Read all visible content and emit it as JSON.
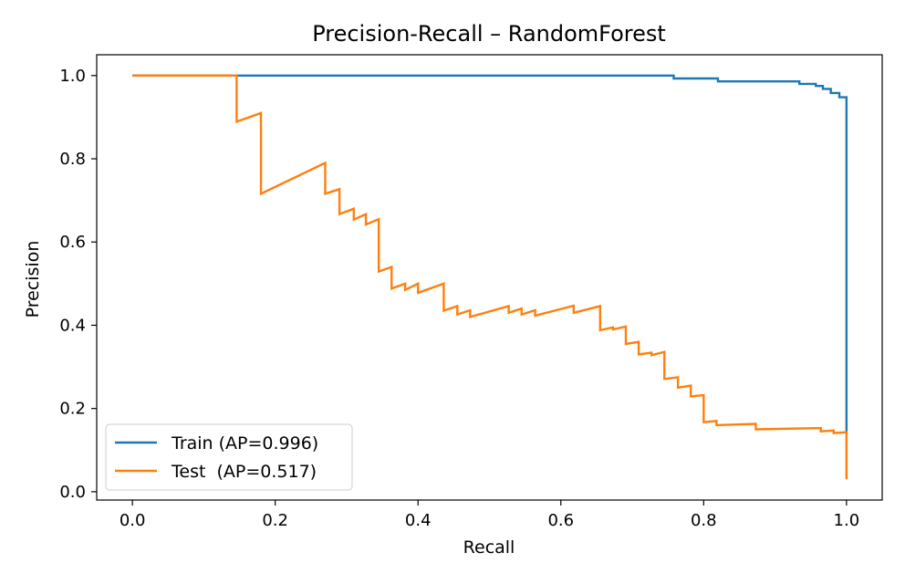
{
  "chart_data": {
    "type": "line",
    "title": "Precision-Recall – RandomForest",
    "xlabel": "Recall",
    "ylabel": "Precision",
    "xlim": [
      -0.05,
      1.05
    ],
    "ylim": [
      -0.02,
      1.05
    ],
    "xticks": [
      0.0,
      0.2,
      0.4,
      0.6,
      0.8,
      1.0
    ],
    "xtick_labels": [
      "0.0",
      "0.2",
      "0.4",
      "0.6",
      "0.8",
      "1.0"
    ],
    "yticks": [
      0.0,
      0.2,
      0.4,
      0.6,
      0.8,
      1.0
    ],
    "ytick_labels": [
      "0.0",
      "0.2",
      "0.4",
      "0.6",
      "0.8",
      "1.0"
    ],
    "grid": false,
    "legend_position": "lower-left",
    "series": [
      {
        "name": "Train (AP=0.996)",
        "color": "#1f77b4",
        "step": true,
        "points": [
          [
            0.0,
            1.0
          ],
          [
            0.758,
            1.0
          ],
          [
            0.758,
            0.993
          ],
          [
            0.82,
            0.993
          ],
          [
            0.82,
            0.986
          ],
          [
            0.934,
            0.986
          ],
          [
            0.934,
            0.98
          ],
          [
            0.957,
            0.98
          ],
          [
            0.957,
            0.975
          ],
          [
            0.967,
            0.975
          ],
          [
            0.967,
            0.968
          ],
          [
            0.978,
            0.968
          ],
          [
            0.978,
            0.958
          ],
          [
            0.99,
            0.958
          ],
          [
            0.99,
            0.948
          ],
          [
            1.0,
            0.948
          ],
          [
            1.0,
            0.14
          ]
        ]
      },
      {
        "name": "Test  (AP=0.517)",
        "color": "#ff7f0e",
        "step": true,
        "points": [
          [
            0.0,
            1.0
          ],
          [
            0.146,
            1.0
          ],
          [
            0.146,
            0.889
          ],
          [
            0.18,
            0.91
          ],
          [
            0.18,
            0.716
          ],
          [
            0.27,
            0.79
          ],
          [
            0.27,
            0.716
          ],
          [
            0.29,
            0.727
          ],
          [
            0.29,
            0.667
          ],
          [
            0.31,
            0.68
          ],
          [
            0.31,
            0.654
          ],
          [
            0.327,
            0.667
          ],
          [
            0.327,
            0.642
          ],
          [
            0.345,
            0.655
          ],
          [
            0.345,
            0.529
          ],
          [
            0.363,
            0.54
          ],
          [
            0.363,
            0.488
          ],
          [
            0.382,
            0.5
          ],
          [
            0.382,
            0.485
          ],
          [
            0.4,
            0.5
          ],
          [
            0.4,
            0.478
          ],
          [
            0.436,
            0.5
          ],
          [
            0.436,
            0.435
          ],
          [
            0.455,
            0.446
          ],
          [
            0.455,
            0.426
          ],
          [
            0.473,
            0.436
          ],
          [
            0.473,
            0.42
          ],
          [
            0.527,
            0.446
          ],
          [
            0.527,
            0.43
          ],
          [
            0.545,
            0.44
          ],
          [
            0.545,
            0.426
          ],
          [
            0.564,
            0.436
          ],
          [
            0.564,
            0.423
          ],
          [
            0.618,
            0.447
          ],
          [
            0.618,
            0.43
          ],
          [
            0.655,
            0.446
          ],
          [
            0.655,
            0.388
          ],
          [
            0.673,
            0.395
          ],
          [
            0.673,
            0.39
          ],
          [
            0.691,
            0.397
          ],
          [
            0.691,
            0.355
          ],
          [
            0.709,
            0.36
          ],
          [
            0.709,
            0.33
          ],
          [
            0.727,
            0.334
          ],
          [
            0.727,
            0.328
          ],
          [
            0.745,
            0.336
          ],
          [
            0.745,
            0.271
          ],
          [
            0.764,
            0.275
          ],
          [
            0.764,
            0.25
          ],
          [
            0.782,
            0.255
          ],
          [
            0.782,
            0.229
          ],
          [
            0.8,
            0.232
          ],
          [
            0.8,
            0.167
          ],
          [
            0.818,
            0.17
          ],
          [
            0.818,
            0.16
          ],
          [
            0.873,
            0.163
          ],
          [
            0.873,
            0.15
          ],
          [
            0.964,
            0.153
          ],
          [
            0.964,
            0.145
          ],
          [
            0.982,
            0.147
          ],
          [
            0.982,
            0.141
          ],
          [
            1.0,
            0.143
          ],
          [
            1.0,
            0.03
          ]
        ]
      }
    ]
  }
}
